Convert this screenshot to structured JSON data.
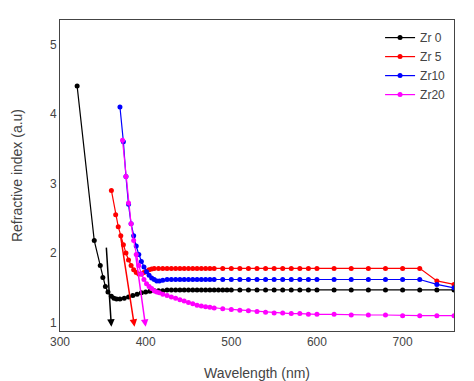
{
  "chart_data": {
    "type": "line",
    "xlabel": "Wavelength (nm)",
    "ylabel": "Refractive index (a.u)",
    "xlim": [
      300,
      760
    ],
    "ylim": [
      0.88,
      5.35
    ],
    "xticks": [
      300,
      400,
      500,
      600,
      700
    ],
    "yticks": [
      1,
      2,
      3,
      4,
      5
    ],
    "grid": false,
    "legend": "upper right",
    "marker": "circle",
    "line_style": "solid",
    "series": [
      {
        "name": "Zr 0",
        "color": "#000000",
        "x": [
          320,
          340,
          347,
          350,
          353,
          356,
          360,
          363,
          366,
          370,
          375,
          380,
          385,
          390,
          395,
          400,
          405,
          410,
          415,
          420,
          425,
          430,
          435,
          440,
          445,
          450,
          455,
          460,
          465,
          470,
          475,
          480,
          485,
          490,
          495,
          500,
          510,
          520,
          530,
          540,
          550,
          560,
          570,
          580,
          590,
          600,
          620,
          640,
          660,
          680,
          700,
          720,
          740,
          760
        ],
        "values": [
          4.4,
          2.18,
          1.82,
          1.65,
          1.52,
          1.44,
          1.38,
          1.35,
          1.34,
          1.34,
          1.35,
          1.37,
          1.39,
          1.41,
          1.43,
          1.44,
          1.45,
          1.46,
          1.46,
          1.46,
          1.47,
          1.47,
          1.47,
          1.47,
          1.47,
          1.47,
          1.47,
          1.47,
          1.47,
          1.47,
          1.47,
          1.47,
          1.47,
          1.47,
          1.47,
          1.47,
          1.47,
          1.47,
          1.47,
          1.47,
          1.47,
          1.47,
          1.47,
          1.47,
          1.47,
          1.47,
          1.47,
          1.47,
          1.47,
          1.47,
          1.47,
          1.47,
          1.47,
          1.47
        ]
      },
      {
        "name": "Zr 5",
        "color": "#ff0000",
        "x": [
          360,
          365,
          368,
          371,
          374,
          377,
          380,
          383,
          386,
          389,
          392,
          395,
          398,
          401,
          404,
          407,
          410,
          415,
          420,
          425,
          430,
          435,
          440,
          445,
          450,
          455,
          460,
          465,
          470,
          475,
          480,
          490,
          500,
          510,
          520,
          530,
          540,
          550,
          560,
          570,
          580,
          590,
          600,
          620,
          640,
          660,
          680,
          700,
          720,
          740,
          760
        ],
        "values": [
          2.9,
          2.55,
          2.38,
          2.25,
          2.12,
          2.0,
          1.9,
          1.82,
          1.76,
          1.72,
          1.7,
          1.7,
          1.72,
          1.74,
          1.76,
          1.77,
          1.78,
          1.78,
          1.78,
          1.78,
          1.78,
          1.78,
          1.78,
          1.78,
          1.78,
          1.78,
          1.78,
          1.78,
          1.78,
          1.78,
          1.78,
          1.78,
          1.78,
          1.78,
          1.78,
          1.78,
          1.78,
          1.78,
          1.78,
          1.78,
          1.78,
          1.78,
          1.78,
          1.78,
          1.78,
          1.78,
          1.78,
          1.78,
          1.78,
          1.6,
          1.55
        ]
      },
      {
        "name": "Zr10",
        "color": "#0000ff",
        "x": [
          370,
          374,
          377,
          380,
          383,
          386,
          389,
          392,
          395,
          398,
          401,
          404,
          407,
          410,
          413,
          416,
          420,
          425,
          430,
          435,
          440,
          445,
          450,
          455,
          460,
          465,
          470,
          475,
          480,
          490,
          500,
          510,
          520,
          530,
          540,
          550,
          560,
          570,
          580,
          590,
          600,
          620,
          640,
          660,
          680,
          700,
          720,
          740,
          760
        ],
        "values": [
          4.1,
          3.6,
          3.1,
          2.7,
          2.42,
          2.25,
          2.1,
          1.98,
          1.88,
          1.8,
          1.73,
          1.68,
          1.64,
          1.62,
          1.6,
          1.6,
          1.61,
          1.62,
          1.62,
          1.62,
          1.62,
          1.62,
          1.62,
          1.62,
          1.62,
          1.62,
          1.62,
          1.62,
          1.62,
          1.62,
          1.62,
          1.62,
          1.62,
          1.62,
          1.62,
          1.62,
          1.62,
          1.62,
          1.62,
          1.62,
          1.62,
          1.62,
          1.62,
          1.62,
          1.62,
          1.62,
          1.62,
          1.55,
          1.5
        ]
      },
      {
        "name": "Zr20",
        "color": "#ff00ff",
        "x": [
          373,
          377,
          380,
          383,
          386,
          389,
          392,
          395,
          398,
          401,
          404,
          407,
          410,
          413,
          416,
          420,
          425,
          430,
          435,
          440,
          445,
          450,
          455,
          460,
          465,
          470,
          475,
          480,
          490,
          500,
          510,
          520,
          530,
          540,
          550,
          560,
          570,
          580,
          590,
          600,
          620,
          640,
          660,
          680,
          700,
          720,
          740,
          760
        ],
        "values": [
          3.62,
          3.1,
          2.72,
          2.42,
          2.18,
          1.98,
          1.82,
          1.7,
          1.62,
          1.56,
          1.52,
          1.49,
          1.46,
          1.44,
          1.43,
          1.41,
          1.39,
          1.37,
          1.35,
          1.33,
          1.31,
          1.29,
          1.27,
          1.25,
          1.24,
          1.23,
          1.22,
          1.21,
          1.2,
          1.19,
          1.18,
          1.17,
          1.16,
          1.15,
          1.14,
          1.14,
          1.13,
          1.13,
          1.12,
          1.12,
          1.12,
          1.11,
          1.11,
          1.11,
          1.1,
          1.1,
          1.1,
          1.1
        ]
      }
    ],
    "arrows": [
      {
        "x_from": 354,
        "y_from": 2.1,
        "x_to": 360,
        "y_to": 0.94,
        "color": "#000000"
      },
      {
        "x_from": 370,
        "y_from": 2.3,
        "x_to": 387,
        "y_to": 0.94,
        "color": "#ff0000"
      },
      {
        "x_from": 388,
        "y_from": 2.0,
        "x_to": 400,
        "y_to": 0.94,
        "color": "#ff00ff"
      }
    ]
  }
}
